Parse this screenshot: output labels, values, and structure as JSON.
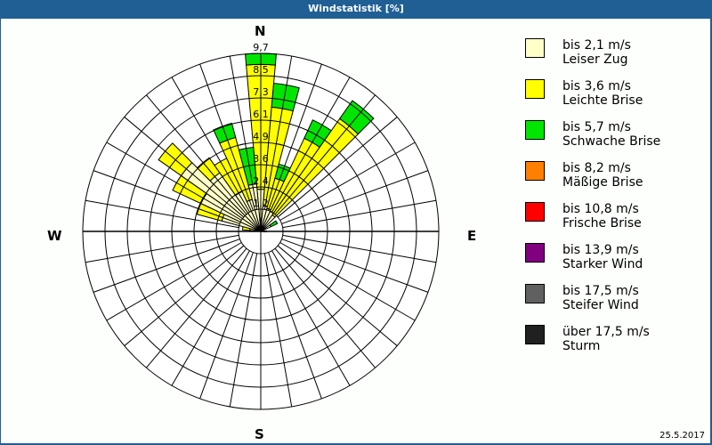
{
  "title": "Windstatistik [%]",
  "date": "25.5.2017",
  "directions": {
    "n": "N",
    "e": "E",
    "s": "S",
    "w": "W"
  },
  "legend": [
    {
      "speed": "bis 2,1 m/s",
      "name": "Leiser Zug",
      "color": "#ffffc8"
    },
    {
      "speed": "bis 3,6 m/s",
      "name": "Leichte Brise",
      "color": "#ffff00"
    },
    {
      "speed": "bis 5,7 m/s",
      "name": "Schwache Brise",
      "color": "#00e600"
    },
    {
      "speed": "bis 8,2 m/s",
      "name": "Mäßige Brise",
      "color": "#ff8000"
    },
    {
      "speed": "bis 10,8 m/s",
      "name": "Frische Brise",
      "color": "#ff0000"
    },
    {
      "speed": "bis 13,9 m/s",
      "name": "Starker Wind",
      "color": "#800080"
    },
    {
      "speed": "bis 17,5 m/s",
      "name": "Steifer Wind",
      "color": "#606060"
    },
    {
      "speed": "über 17,5 m/s",
      "name": "Sturm",
      "color": "#202020"
    }
  ],
  "chart_data": {
    "type": "wind-rose",
    "title": "Windstatistik [%]",
    "ring_labels": [
      "1,2",
      "2,4",
      "3,6",
      "4,9",
      "6,1",
      "7,3",
      "8,5",
      "9,7"
    ],
    "rmax": 9.7,
    "sector_width_deg": 10,
    "series_names": [
      "Leiser Zug",
      "Leichte Brise",
      "Schwache Brise"
    ],
    "sectors": [
      {
        "dir": 0,
        "values": [
          2.3,
          6.8,
          0.6
        ]
      },
      {
        "dir": 10,
        "values": [
          1.4,
          5.4,
          1.3
        ]
      },
      {
        "dir": 20,
        "values": [
          1.3,
          1.7,
          0.8
        ]
      },
      {
        "dir": 30,
        "values": [
          1.2,
          4.4,
          1.1
        ]
      },
      {
        "dir": 40,
        "values": [
          1.1,
          6.4,
          1.2
        ]
      },
      {
        "dir": 60,
        "values": [
          0.6,
          0.0,
          0.4
        ]
      },
      {
        "dir": 90,
        "values": [
          0.3,
          0.0,
          0.0
        ]
      },
      {
        "dir": 280,
        "values": [
          0.6,
          0.4,
          0.0
        ]
      },
      {
        "dir": 290,
        "values": [
          2.2,
          1.4,
          0.0
        ]
      },
      {
        "dir": 300,
        "values": [
          3.6,
          1.7,
          0.0
        ]
      },
      {
        "dir": 310,
        "values": [
          5.3,
          1.5,
          0.0
        ]
      },
      {
        "dir": 320,
        "values": [
          3.9,
          1.0,
          0.0
        ]
      },
      {
        "dir": 330,
        "values": [
          2.4,
          2.0,
          0.0
        ]
      },
      {
        "dir": 340,
        "values": [
          1.8,
          3.5,
          0.8
        ]
      },
      {
        "dir": 350,
        "values": [
          2.6,
          0.0,
          2.0
        ]
      }
    ]
  }
}
